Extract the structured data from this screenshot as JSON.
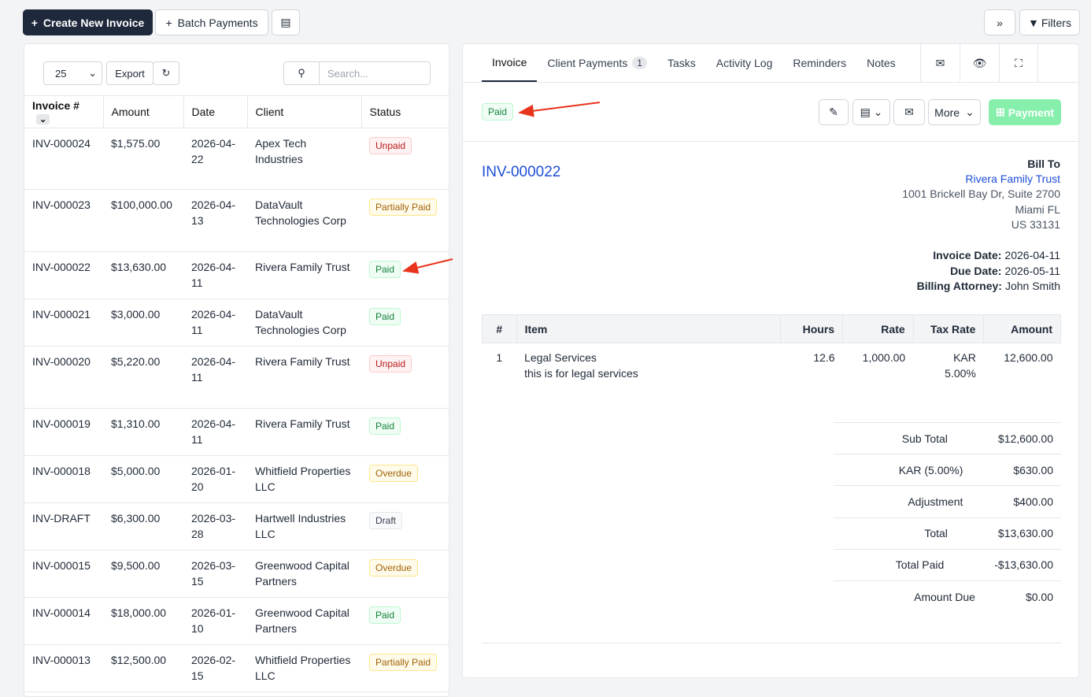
{
  "toolbar": {
    "create": "Create New Invoice",
    "batch": "Batch Payments",
    "filters": "Filters"
  },
  "list": {
    "page_size": "25",
    "export": "Export",
    "search_placeholder": "Search...",
    "columns": [
      "Invoice #",
      "Amount",
      "Date",
      "Client",
      "Status"
    ],
    "rows": [
      {
        "invoice": "INV-000024",
        "amount": "$1,575.00",
        "date": "2026-04-22",
        "client": "Apex Tech Industries",
        "status": "Unpaid",
        "tone": "red"
      },
      {
        "invoice": "INV-000023",
        "amount": "$100,000.00",
        "date": "2026-04-13",
        "client": "DataVault Technologies Corp",
        "status": "Partially Paid",
        "tone": "amber"
      },
      {
        "invoice": "INV-000022",
        "amount": "$13,630.00",
        "date": "2026-04-11",
        "client": "Rivera Family Trust",
        "status": "Paid",
        "tone": "green"
      },
      {
        "invoice": "INV-000021",
        "amount": "$3,000.00",
        "date": "2026-04-11",
        "client": "DataVault Technologies Corp",
        "status": "Paid",
        "tone": "green"
      },
      {
        "invoice": "INV-000020",
        "amount": "$5,220.00",
        "date": "2026-04-11",
        "client": "Rivera Family Trust",
        "status": "Unpaid",
        "tone": "red"
      },
      {
        "invoice": "INV-000019",
        "amount": "$1,310.00",
        "date": "2026-04-11",
        "client": "Rivera Family Trust",
        "status": "Paid",
        "tone": "green"
      },
      {
        "invoice": "INV-000018",
        "amount": "$5,000.00",
        "date": "2026-01-20",
        "client": "Whitfield Properties LLC",
        "status": "Overdue",
        "tone": "amber"
      },
      {
        "invoice": "INV-DRAFT",
        "amount": "$6,300.00",
        "date": "2026-03-28",
        "client": "Hartwell Industries LLC",
        "status": "Draft",
        "tone": "gray"
      },
      {
        "invoice": "INV-000015",
        "amount": "$9,500.00",
        "date": "2026-03-15",
        "client": "Greenwood Capital Partners",
        "status": "Overdue",
        "tone": "amber"
      },
      {
        "invoice": "INV-000014",
        "amount": "$18,000.00",
        "date": "2026-01-10",
        "client": "Greenwood Capital Partners",
        "status": "Paid",
        "tone": "green"
      },
      {
        "invoice": "INV-000013",
        "amount": "$12,500.00",
        "date": "2026-02-15",
        "client": "Whitfield Properties LLC",
        "status": "Partially Paid",
        "tone": "amber"
      }
    ]
  },
  "detail": {
    "tabs": [
      {
        "label": "Invoice"
      },
      {
        "label": "Client Payments",
        "badge": "1"
      },
      {
        "label": "Tasks"
      },
      {
        "label": "Activity Log"
      },
      {
        "label": "Reminders"
      },
      {
        "label": "Notes"
      }
    ],
    "status": "Paid",
    "more": "More",
    "payment": "Payment",
    "number": "INV-000022",
    "bill_to": "Bill To",
    "client": "Rivera Family Trust",
    "address": [
      "1001 Brickell Bay Dr, Suite 2700",
      "Miami FL",
      "US 33131"
    ],
    "meta": [
      {
        "label": "Invoice Date:",
        "value": "2026-04-11"
      },
      {
        "label": "Due Date:",
        "value": "2026-05-11"
      },
      {
        "label": "Billing Attorney:",
        "value": "John Smith"
      }
    ],
    "item_columns": [
      "#",
      "Item",
      "Hours",
      "Rate",
      "Tax Rate",
      "Amount"
    ],
    "items": [
      {
        "num": "1",
        "name": "Legal Services",
        "description": "this is for legal services",
        "hours": "12.6",
        "rate": "1,000.00",
        "tax": "KAR 5.00%",
        "amount": "12,600.00"
      }
    ],
    "totals": [
      {
        "label": "Sub Total",
        "value": "$12,600.00"
      },
      {
        "label": "KAR (5.00%)",
        "value": "$630.00"
      },
      {
        "label": "Adjustment",
        "value": "$400.00"
      },
      {
        "label": "Total",
        "value": "$13,630.00"
      },
      {
        "label": "Total Paid",
        "value": "-$13,630.00"
      },
      {
        "label": "Amount Due",
        "value": "$0.00"
      }
    ]
  }
}
